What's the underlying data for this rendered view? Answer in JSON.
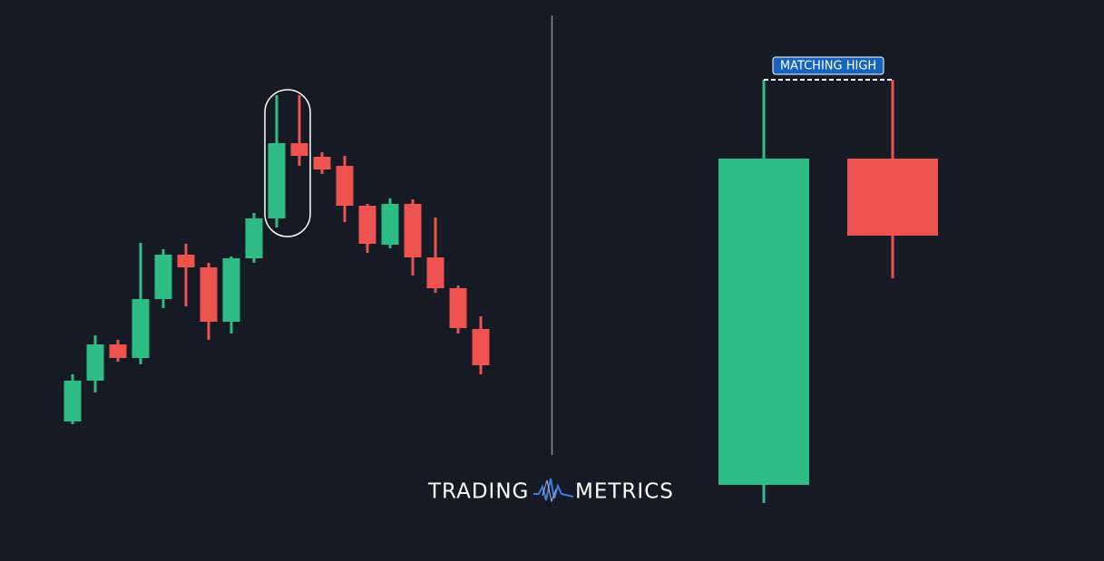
{
  "chart_data": [
    {
      "type": "candlestick",
      "up_color": "#2ebd85",
      "down_color": "#ef5350",
      "ylim": [
        100,
        500
      ],
      "open": [
        135,
        180,
        220,
        205,
        270,
        319,
        305,
        245,
        315,
        359,
        442,
        427,
        417,
        373,
        330,
        375,
        316,
        282,
        237
      ],
      "close": [
        180,
        220,
        205,
        270,
        319,
        305,
        245,
        315,
        359,
        442,
        428,
        413,
        373,
        331,
        375,
        316,
        282,
        238,
        197
      ],
      "high": [
        187,
        230,
        225,
        332,
        325,
        331,
        310,
        317,
        365,
        495,
        495,
        432,
        428,
        375,
        381,
        380,
        360,
        285,
        251
      ],
      "low": [
        132,
        167,
        201,
        198,
        260,
        262,
        225,
        232,
        310,
        349,
        417,
        408,
        355,
        321,
        326,
        296,
        277,
        232,
        187
      ]
    },
    {
      "type": "candlestick",
      "up_color": "#2ebd85",
      "down_color": "#ef5350",
      "ylim": [
        0,
        500
      ],
      "open": [
        35,
        395
      ],
      "close": [
        395,
        310
      ],
      "high": [
        482,
        482
      ],
      "low": [
        15,
        263
      ],
      "annotation": "MATCHING HIGH"
    }
  ],
  "logo": {
    "left": "TRADING",
    "right": "METRICS"
  }
}
